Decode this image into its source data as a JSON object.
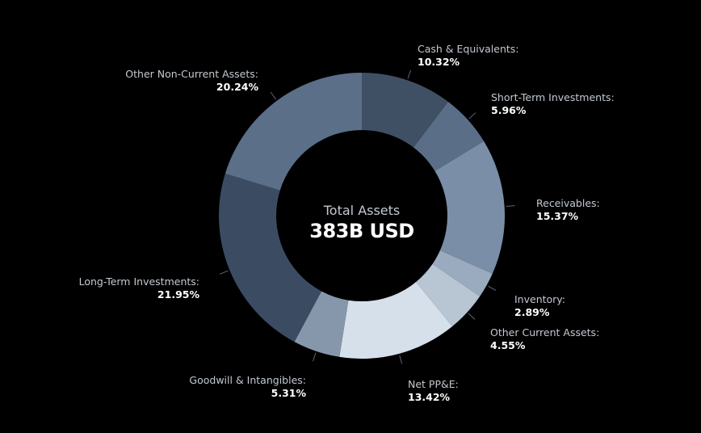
{
  "chart_data": {
    "type": "pie",
    "donut": true,
    "center_title": "Total Assets",
    "center_value": "383B USD",
    "unit": "%",
    "slices": [
      {
        "label": "Cash & Equivalents:",
        "value": 10.32,
        "display": "10.32%",
        "color": "#3f4f64"
      },
      {
        "label": "Short-Term Investments:",
        "value": 5.96,
        "display": "5.96%",
        "color": "#5a6e87"
      },
      {
        "label": "Receivables:",
        "value": 15.37,
        "display": "15.37%",
        "color": "#7a8ea8"
      },
      {
        "label": "Inventory:",
        "value": 2.89,
        "display": "2.89%",
        "color": "#9aabc0"
      },
      {
        "label": "Other Current Assets:",
        "value": 4.55,
        "display": "4.55%",
        "color": "#b8c5d3"
      },
      {
        "label": "Net PP&E:",
        "value": 13.42,
        "display": "13.42%",
        "color": "#d6e0ea"
      },
      {
        "label": "Goodwill & Intangibles:",
        "value": 5.31,
        "display": "5.31%",
        "color": "#8797ab"
      },
      {
        "label": "Long-Term Investments:",
        "value": 21.95,
        "display": "21.95%",
        "color": "#3b4c62"
      },
      {
        "label": "Other Non-Current Assets:",
        "value": 20.24,
        "display": "20.24%",
        "color": "#5b6f88"
      }
    ]
  }
}
